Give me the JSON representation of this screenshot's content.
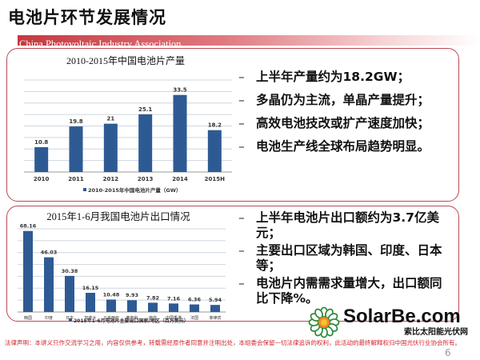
{
  "slide": {
    "title": "电池片环节发展情况",
    "band_text": "China Photovoltaic Industry Association",
    "page_number": "6",
    "legal": "法律声明：本讲义只作交流学习之用，内容仅供参考，转载需经原作者同意并注明出处，本组委会保留一切法律追诉的权利，此活动的最终解释权归中国光伏行业协会所有。"
  },
  "top_bullets": [
    "上半年产量约为18.2GW；",
    "多晶仍为主流，单晶产量提升；",
    "高效电池技改或扩产速度加快；",
    "电池生产线全球布局趋势明显。"
  ],
  "bottom_bullets": [
    "上半年电池片出口额约为3.7亿美元；",
    "主要出口区域为韩国、印度、日本等；",
    "电池片内需需求量增大，出口额同比下降%。"
  ],
  "watermark": {
    "text": "SolarBe.com",
    "subtext": "索比太阳能光伏网"
  },
  "chart_data": [
    {
      "type": "bar",
      "title": "2010-2015年中国电池片产量",
      "categories": [
        "2010",
        "2011",
        "2012",
        "2013",
        "2014",
        "2015H"
      ],
      "series": [
        {
          "name": "2010-2015年中国电池片产量（GW）",
          "values": [
            10.8,
            19.8,
            21,
            25.1,
            33.5,
            18.2
          ]
        }
      ],
      "ylim": [
        0,
        40
      ],
      "grid": true,
      "legend": "bottom",
      "color": "#2e5a94"
    },
    {
      "type": "bar",
      "title": "2015年1-6月我国电池片出口情况",
      "categories": [
        "韩国",
        "印度",
        "日本",
        "加拿大",
        "马来西亚",
        "奥地利",
        "南非",
        "中国香港",
        "法国",
        "菲律宾"
      ],
      "series": [
        {
          "name": "2015年1-6月电池片主要出口国家/地区（百万美元）",
          "values": [
            68.16,
            46.03,
            30.38,
            16.15,
            10.48,
            9.93,
            7.82,
            7.16,
            6.36,
            5.94
          ]
        }
      ],
      "ylim": [
        0,
        70
      ],
      "grid": true,
      "legend": "bottom",
      "color": "#2e5a94"
    }
  ]
}
